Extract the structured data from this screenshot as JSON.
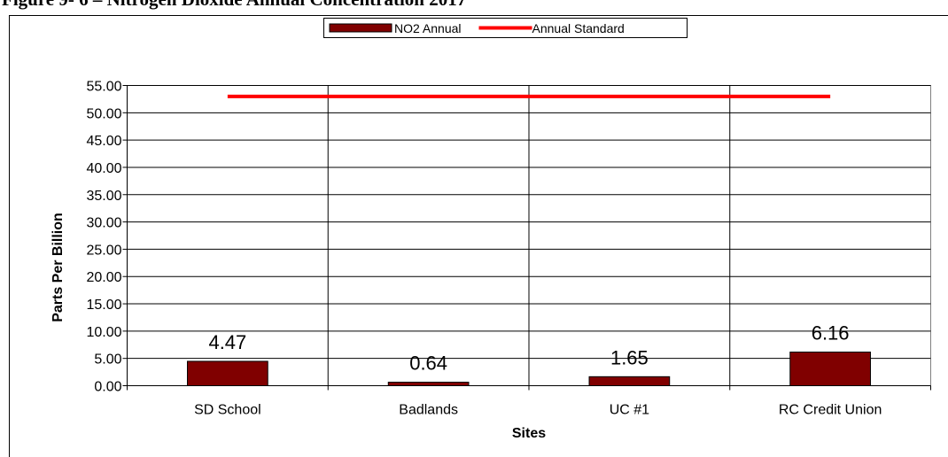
{
  "chart_data": {
    "type": "bar",
    "title": "Figure 9- 6 – Nitrogen Dioxide Annual Concentration 2017",
    "categories": [
      "SD School",
      "Badlands",
      "UC #1",
      "RC Credit Union"
    ],
    "series": [
      {
        "name": "NO2 Annual",
        "type": "bar",
        "color": "#800000",
        "values": [
          4.47,
          0.64,
          1.65,
          6.16
        ]
      },
      {
        "name": "Annual Standard",
        "type": "line",
        "color": "#ff0000",
        "values": [
          53,
          53,
          53,
          53
        ]
      }
    ],
    "xlabel": "Sites",
    "ylabel": "Parts Per Billion",
    "ylim": [
      0,
      55
    ],
    "yticks": [
      {
        "value": 0,
        "label": "0.00"
      },
      {
        "value": 5,
        "label": "5.00"
      },
      {
        "value": 10,
        "label": "10.00"
      },
      {
        "value": 15,
        "label": "15.00"
      },
      {
        "value": 20,
        "label": "20.00"
      },
      {
        "value": 25,
        "label": "25.00"
      },
      {
        "value": 30,
        "label": "30.00"
      },
      {
        "value": 35,
        "label": "35.00"
      },
      {
        "value": 40,
        "label": "40.00"
      },
      {
        "value": 45,
        "label": "45.00"
      },
      {
        "value": 50,
        "label": "50.00"
      },
      {
        "value": 55,
        "label": "55.00"
      }
    ],
    "grid": true,
    "legend": "top"
  }
}
